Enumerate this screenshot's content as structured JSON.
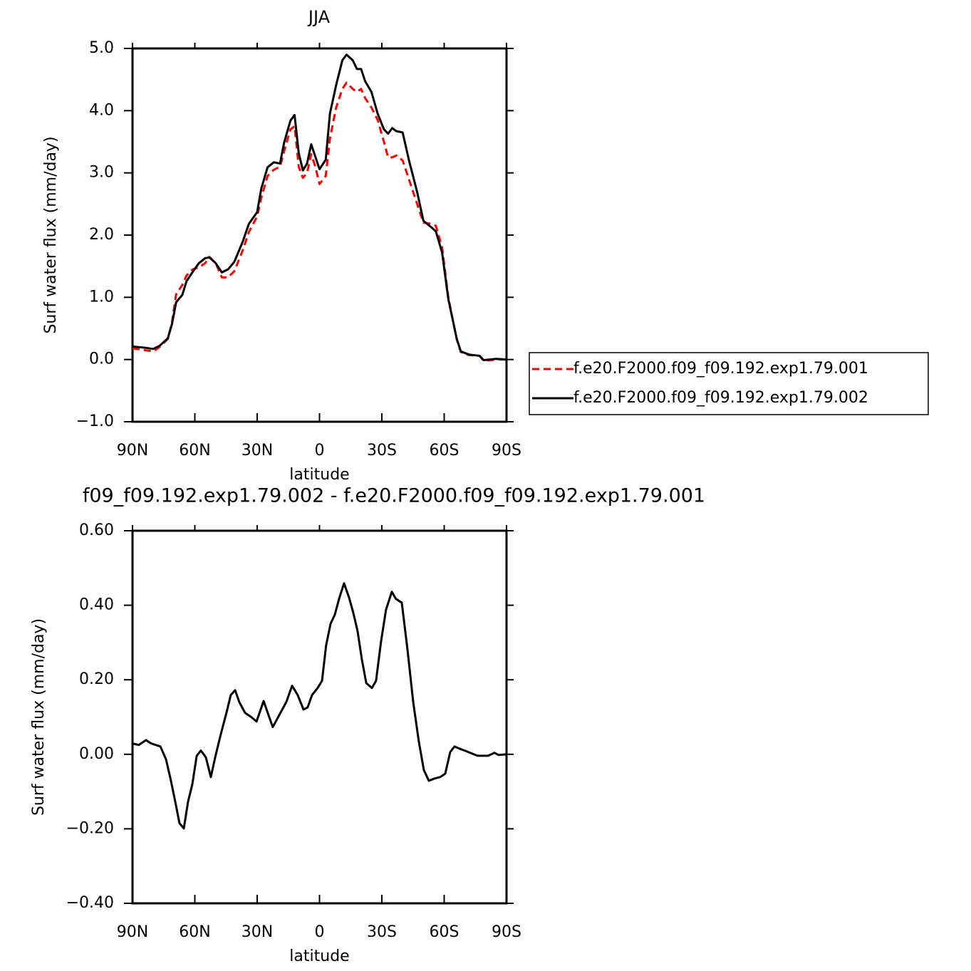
{
  "chart_data": [
    {
      "type": "line",
      "title": "JJA",
      "x_label": "latitude",
      "y_label": "Surf water flux (mm/day)",
      "x": [
        90,
        84,
        80,
        77,
        73,
        71,
        69,
        66,
        64,
        61,
        58,
        55,
        53,
        50,
        47,
        44,
        41,
        37,
        34,
        30,
        28,
        25,
        22,
        19,
        17,
        14,
        12,
        10,
        8,
        6,
        4,
        2,
        0,
        -3,
        -5,
        -8,
        -11,
        -13,
        -16,
        -18,
        -20,
        -22,
        -25,
        -28,
        -31,
        -33,
        -35,
        -37,
        -40,
        -43,
        -47,
        -50,
        -54,
        -56,
        -59,
        -62,
        -66,
        -68,
        -72,
        -77,
        -79,
        -85,
        -90
      ],
      "series": [
        {
          "name": "f.e20.F2000.f09_f09.192.exp1.79.001",
          "color": "#ff0000",
          "line_style": "dashed",
          "values": [
            0.18,
            0.15,
            0.13,
            0.2,
            0.33,
            0.6,
            1.05,
            1.2,
            1.35,
            1.45,
            1.48,
            1.55,
            1.65,
            1.55,
            1.32,
            1.32,
            1.42,
            1.75,
            2.05,
            2.3,
            2.6,
            2.95,
            3.05,
            3.1,
            3.35,
            3.7,
            3.75,
            3.1,
            2.92,
            3.0,
            3.3,
            3.1,
            2.82,
            2.95,
            3.55,
            4.05,
            4.35,
            4.45,
            4.35,
            4.3,
            4.35,
            4.2,
            4.05,
            3.85,
            3.5,
            3.25,
            3.25,
            3.28,
            3.2,
            2.9,
            2.5,
            2.2,
            2.18,
            2.15,
            1.8,
            1.0,
            0.33,
            0.12,
            0.07,
            0.06,
            -0.02,
            0.0,
            0.0
          ]
        },
        {
          "name": "f.e20.F2000.f09_f09.192.exp1.79.002",
          "color": "#000000",
          "line_style": "solid",
          "values": [
            0.21,
            0.19,
            0.17,
            0.22,
            0.34,
            0.57,
            0.92,
            1.04,
            1.26,
            1.41,
            1.55,
            1.63,
            1.64,
            1.55,
            1.4,
            1.45,
            1.57,
            1.89,
            2.18,
            2.37,
            2.75,
            3.09,
            3.17,
            3.15,
            3.49,
            3.84,
            3.93,
            3.32,
            3.04,
            3.15,
            3.46,
            3.26,
            3.06,
            3.21,
            3.95,
            4.41,
            4.81,
            4.9,
            4.81,
            4.67,
            4.67,
            4.47,
            4.3,
            3.95,
            3.7,
            3.63,
            3.72,
            3.67,
            3.65,
            3.21,
            2.69,
            2.23,
            2.12,
            2.06,
            1.72,
            0.97,
            0.34,
            0.13,
            0.08,
            0.06,
            -0.01,
            0.01,
            0.0
          ]
        }
      ],
      "xlim": [
        90,
        -90
      ],
      "xticks": [
        {
          "value": 90,
          "label": "90N"
        },
        {
          "value": 60,
          "label": "60N"
        },
        {
          "value": 30,
          "label": "30N"
        },
        0,
        {
          "value": -30,
          "label": "30S"
        },
        {
          "value": -60,
          "label": "60S"
        },
        {
          "value": -90,
          "label": "90S"
        }
      ],
      "ylim": [
        -1,
        5
      ],
      "yticks": [
        {
          "value": -1,
          "label": "−1.0"
        },
        {
          "value": 0,
          "label": "0.0"
        },
        {
          "value": 1,
          "label": "1.0"
        },
        {
          "value": 2,
          "label": "2.0"
        },
        {
          "value": 3,
          "label": "3.0"
        },
        {
          "value": 4,
          "label": "4.0"
        },
        {
          "value": 5,
          "label": "5.0"
        }
      ],
      "legend": "right",
      "grid": false
    },
    {
      "type": "line",
      "title": "f09_f09.192.exp1.79.002 - f.e20.F2000.f09_f09.192.exp1.79.001",
      "x_label": "latitude",
      "y_label": "Surf water flux (mm/day)",
      "x": [
        90,
        87,
        83.5,
        81,
        76.6,
        73.9,
        71.5,
        69.4,
        67.4,
        65.3,
        63.3,
        61.2,
        59.1,
        57.1,
        54.7,
        52.3,
        50.2,
        47.5,
        44.8,
        42.7,
        40.6,
        38.6,
        35.8,
        33.1,
        30.3,
        26.9,
        24.9,
        22.5,
        19.4,
        16,
        13.2,
        10.5,
        7.7,
        5.7,
        3.6,
        0.9,
        -1.2,
        -3.2,
        -5.3,
        -7.4,
        -9.4,
        -11.8,
        -14.2,
        -16.3,
        -18.3,
        -20.4,
        -22.5,
        -25.2,
        -27.2,
        -29.6,
        -32,
        -34.8,
        -36.8,
        -39.6,
        -42.3,
        -45.1,
        -47.8,
        -50.2,
        -52.6,
        -55.4,
        -58.1,
        -60.5,
        -62.9,
        -65,
        -67.4,
        -70.8,
        -76,
        -81.1,
        -84.2,
        -86.2,
        -90
      ],
      "values": [
        0.029,
        0.025,
        0.038,
        0.029,
        0.021,
        -0.013,
        -0.071,
        -0.128,
        -0.185,
        -0.199,
        -0.128,
        -0.08,
        -0.004,
        0.01,
        -0.008,
        -0.061,
        -0.008,
        0.054,
        0.111,
        0.159,
        0.172,
        0.14,
        0.111,
        0.101,
        0.088,
        0.143,
        0.111,
        0.073,
        0.105,
        0.14,
        0.184,
        0.159,
        0.12,
        0.126,
        0.159,
        0.178,
        0.197,
        0.293,
        0.35,
        0.375,
        0.417,
        0.459,
        0.421,
        0.379,
        0.331,
        0.254,
        0.191,
        0.178,
        0.197,
        0.302,
        0.388,
        0.436,
        0.417,
        0.407,
        0.283,
        0.14,
        0.034,
        -0.042,
        -0.071,
        -0.065,
        -0.061,
        -0.052,
        0.006,
        0.021,
        0.015,
        0.008,
        -0.004,
        -0.004,
        0.004,
        -0.002,
        0
      ],
      "color": "#000000",
      "line_style": "solid",
      "xlim": [
        90,
        -90
      ],
      "xticks": [
        {
          "value": 90,
          "label": "90N"
        },
        {
          "value": 60,
          "label": "60N"
        },
        {
          "value": 30,
          "label": "30N"
        },
        0,
        {
          "value": -30,
          "label": "30S"
        },
        {
          "value": -60,
          "label": "60S"
        },
        {
          "value": -90,
          "label": "90S"
        }
      ],
      "ylim": [
        -0.4,
        0.6
      ],
      "yticks": [
        {
          "value": -0.4,
          "label": "−0.40"
        },
        {
          "value": -0.2,
          "label": "−0.20"
        },
        {
          "value": 0,
          "label": "0.00"
        },
        {
          "value": 0.2,
          "label": "0.20"
        },
        {
          "value": 0.4,
          "label": "0.40"
        },
        {
          "value": 0.6,
          "label": "0.60"
        }
      ],
      "grid": false
    }
  ]
}
